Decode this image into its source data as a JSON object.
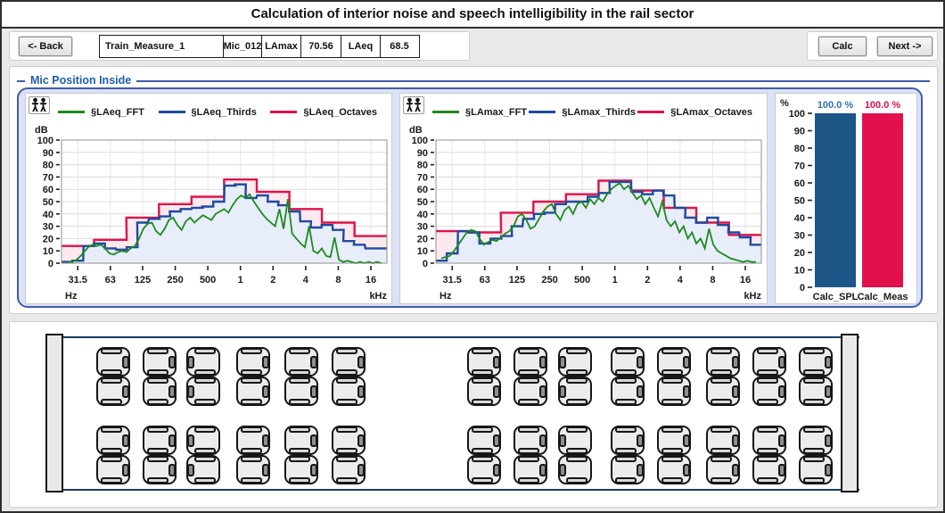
{
  "window": {
    "title": "Calculation of interior noise and speech intelligibility in the rail sector"
  },
  "toolbar": {
    "back": "<- Back",
    "calc": "Calc",
    "next": "Next ->",
    "fields": [
      "Train_Measure_1",
      "Mic_012",
      "LAmax",
      "70.56",
      "LAeq",
      "68.5"
    ]
  },
  "mic_panel": {
    "title": "Mic Position Inside"
  },
  "colors": {
    "accent_blue": "#3e5ca8",
    "label_blue": "#1f5fa8",
    "fft_green": "#1e8a1e",
    "thirds_blue": "#1f4a9e",
    "octaves_red": "#e01248",
    "bar_blue": "#1b5687",
    "bar_red": "#e3104e",
    "panel_lavender": "#dce2f4"
  },
  "chart_data": [
    {
      "id": "laeq_spectrum",
      "type": "area",
      "subtype": "stepped-spectrum",
      "ylabel": "dB",
      "xlabel_left": "Hz",
      "xlabel_right": "kHz",
      "ylim": [
        0,
        100
      ],
      "ytick_step": 10,
      "grid": true,
      "xticks": [
        "31.5",
        "63",
        "125",
        "250",
        "500",
        "1",
        "2",
        "4",
        "8",
        "16"
      ],
      "legend": [
        {
          "label": "§LAeq_FFT",
          "color": "#1e8a1e"
        },
        {
          "label": "§LAeq_Thirds",
          "color": "#1f4a9e"
        },
        {
          "label": "§LAeq_Octaves",
          "color": "#e01248"
        }
      ],
      "octaves": {
        "centers": [
          31.5,
          63,
          125,
          250,
          500,
          1000,
          2000,
          4000,
          8000,
          16000
        ],
        "values": [
          14,
          19,
          37,
          48,
          54,
          68,
          58,
          44,
          33,
          22
        ]
      },
      "thirds": {
        "centers": [
          25,
          31.5,
          40,
          50,
          63,
          80,
          100,
          125,
          160,
          200,
          250,
          315,
          400,
          500,
          630,
          800,
          1000,
          1250,
          1600,
          2000,
          2500,
          3150,
          4000,
          5000,
          6300,
          8000,
          10000,
          12500,
          16000,
          20000
        ],
        "values": [
          1,
          2,
          14,
          16,
          12,
          11,
          13,
          33,
          36,
          38,
          42,
          44,
          45,
          46,
          50,
          63,
          64,
          53,
          55,
          50,
          47,
          42,
          34,
          29,
          31,
          27,
          18,
          15,
          12,
          12
        ]
      },
      "fft": {
        "fmin": 25,
        "fmax": 20000,
        "values": [
          0,
          1,
          2,
          5,
          9,
          13,
          15,
          14,
          15,
          12,
          8,
          7,
          9,
          10,
          9,
          12,
          14,
          20,
          28,
          32,
          33,
          26,
          23,
          28,
          35,
          37,
          31,
          27,
          34,
          37,
          33,
          36,
          39,
          37,
          35,
          40,
          42,
          44,
          41,
          47,
          52,
          55,
          53,
          56,
          50,
          45,
          40,
          36,
          33,
          30,
          44,
          28,
          52,
          24,
          20,
          16,
          13,
          30,
          10,
          8,
          12,
          6,
          5,
          21,
          3,
          1,
          2,
          1,
          0,
          1,
          0,
          1,
          0,
          1,
          0
        ]
      }
    },
    {
      "id": "lamax_spectrum",
      "type": "area",
      "subtype": "stepped-spectrum",
      "ylabel": "dB",
      "xlabel_left": "Hz",
      "xlabel_right": "kHz",
      "ylim": [
        0,
        100
      ],
      "ytick_step": 10,
      "grid": true,
      "xticks": [
        "31.5",
        "63",
        "125",
        "250",
        "500",
        "1",
        "2",
        "4",
        "8",
        "16"
      ],
      "legend": [
        {
          "label": "§LAmax_FFT",
          "color": "#1e8a1e"
        },
        {
          "label": "§LAmax_Thirds",
          "color": "#1f4a9e"
        },
        {
          "label": "§LAmax_Octaves",
          "color": "#e01248"
        }
      ],
      "octaves": {
        "centers": [
          31.5,
          63,
          125,
          250,
          500,
          1000,
          2000,
          4000,
          8000,
          16000
        ],
        "values": [
          26,
          25,
          41,
          50,
          56,
          67,
          59,
          45,
          33,
          23
        ]
      },
      "thirds": {
        "centers": [
          25,
          31.5,
          40,
          50,
          63,
          80,
          100,
          125,
          160,
          200,
          250,
          315,
          400,
          500,
          630,
          800,
          1000,
          1250,
          1600,
          2000,
          2500,
          3150,
          4000,
          5000,
          6300,
          8000,
          10000,
          12500,
          16000,
          20000
        ],
        "values": [
          2,
          8,
          26,
          25,
          16,
          20,
          22,
          30,
          36,
          40,
          41,
          48,
          50,
          50,
          54,
          57,
          66,
          66,
          58,
          56,
          59,
          55,
          45,
          37,
          33,
          37,
          31,
          25,
          21,
          15
        ]
      },
      "fft": {
        "fmin": 25,
        "fmax": 20000,
        "values": [
          4,
          5,
          6,
          10,
          15,
          20,
          25,
          27,
          26,
          20,
          15,
          17,
          19,
          18,
          21,
          24,
          26,
          30,
          38,
          40,
          35,
          28,
          30,
          36,
          42,
          46,
          48,
          40,
          35,
          43,
          46,
          40,
          48,
          50,
          45,
          52,
          48,
          53,
          50,
          56,
          60,
          63,
          65,
          60,
          63,
          57,
          52,
          55,
          48,
          53,
          45,
          38,
          50,
          35,
          30,
          34,
          25,
          30,
          20,
          25,
          16,
          20,
          12,
          28,
          15,
          10,
          8,
          6,
          4,
          3,
          2,
          1,
          2,
          1,
          1
        ]
      }
    },
    {
      "id": "calc_match",
      "type": "bar",
      "ylabel": "%",
      "ylim": [
        0,
        100
      ],
      "ytick_step": 10,
      "categories": [
        "Calc_SPL",
        "Calc_Meas"
      ],
      "values": [
        100.0,
        100.0
      ],
      "value_labels": [
        "100.0 %",
        "100.0 %"
      ],
      "bar_colors": [
        "#1b5687",
        "#e3104e"
      ],
      "label_colors": [
        "#2e74b5",
        "#e3104e"
      ]
    }
  ],
  "seat_map": {
    "description": "train car top view, two double-seat rows per side",
    "rows_per_side": 2,
    "groups": [
      {
        "seat_pairs": 6,
        "mirrored_pair": 3
      },
      {
        "seat_pairs": 8,
        "mirrored_pair": 3
      }
    ],
    "total_seats": 56
  }
}
